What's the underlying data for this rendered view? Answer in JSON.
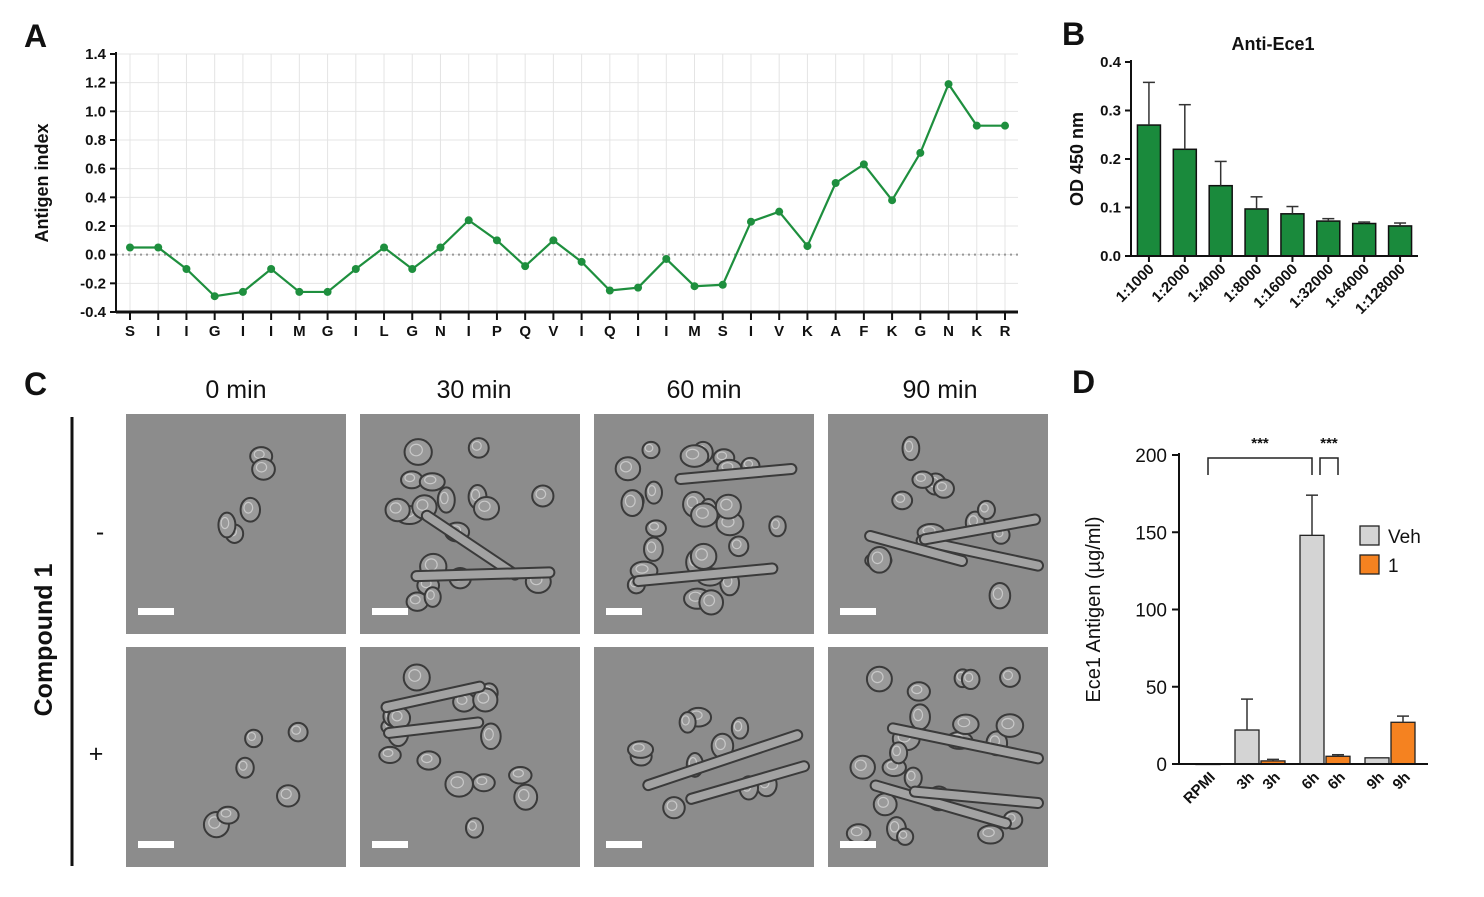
{
  "panels": {
    "A": {
      "label": "A"
    },
    "B": {
      "label": "B"
    },
    "C": {
      "label": "C"
    },
    "D": {
      "label": "D"
    }
  },
  "micro": {
    "times": [
      "0 min",
      "30 min",
      "60 min",
      "90 min"
    ],
    "rows": [
      "-",
      "+"
    ],
    "row_title": "Compound 1"
  },
  "colors": {
    "green": "#1a8a3c",
    "green_line": "#1e8f3e",
    "gray_bar": "#d4d4d4",
    "orange_bar": "#f58220",
    "micro_bg": "#8c8c8c"
  },
  "chart_data": [
    {
      "id": "A",
      "type": "line",
      "title": "",
      "xlabel": "",
      "ylabel": "Antigen index",
      "ylim": [
        -0.4,
        1.4
      ],
      "yticks": [
        "-0.4",
        "-0.2",
        "0.0",
        "0.2",
        "0.4",
        "0.6",
        "0.8",
        "1.0",
        "1.2",
        "1.4"
      ],
      "grid": true,
      "categories": [
        "S",
        "I",
        "I",
        "G",
        "I",
        "I",
        "M",
        "G",
        "I",
        "L",
        "G",
        "N",
        "I",
        "P",
        "Q",
        "V",
        "I",
        "Q",
        "I",
        "I",
        "M",
        "S",
        "I",
        "V",
        "K",
        "A",
        "F",
        "K",
        "G",
        "N",
        "K",
        "R"
      ],
      "values": [
        0.05,
        0.05,
        -0.1,
        -0.29,
        -0.26,
        -0.1,
        -0.26,
        -0.26,
        -0.1,
        0.05,
        -0.1,
        0.05,
        0.24,
        0.1,
        -0.08,
        0.1,
        -0.05,
        -0.25,
        -0.23,
        -0.03,
        -0.22,
        -0.21,
        0.23,
        0.3,
        0.06,
        0.5,
        0.63,
        0.38,
        0.71,
        1.19,
        0.9,
        0.9
      ]
    },
    {
      "id": "B",
      "type": "bar",
      "title": "Anti-Ece1",
      "xlabel": "",
      "ylabel": "OD 450 nm",
      "ylim": [
        0,
        0.4
      ],
      "yticks": [
        "0.0",
        "0.1",
        "0.2",
        "0.3",
        "0.4"
      ],
      "categories": [
        "1:1000",
        "1:2000",
        "1:4000",
        "1:8000",
        "1:16000",
        "1:32000",
        "1:64000",
        "1:128000"
      ],
      "values": [
        0.27,
        0.22,
        0.145,
        0.097,
        0.087,
        0.072,
        0.067,
        0.062
      ],
      "errors": [
        0.088,
        0.092,
        0.05,
        0.025,
        0.015,
        0.005,
        0.003,
        0.006
      ]
    },
    {
      "id": "D",
      "type": "bar",
      "title": "",
      "xlabel": "",
      "ylabel": "Ece1 Antigen (µg/ml)",
      "ylim": [
        0,
        200
      ],
      "yticks": [
        "0",
        "50",
        "100",
        "150",
        "200"
      ],
      "legend_position": "right",
      "categories": [
        "RPMI",
        "3h",
        "3h",
        "6h",
        "6h",
        "9h",
        "9h"
      ],
      "series": [
        {
          "name": "Veh",
          "values": [
            0,
            22,
            null,
            148,
            null,
            4,
            null
          ],
          "errors": [
            0,
            20,
            null,
            26,
            null,
            0,
            null
          ]
        },
        {
          "name": "1",
          "values": [
            null,
            null,
            2,
            null,
            5,
            null,
            27
          ],
          "errors": [
            null,
            null,
            1,
            null,
            1,
            null,
            4
          ]
        }
      ],
      "significance": [
        {
          "label": "***",
          "from": "RPMI",
          "to": "6h"
        },
        {
          "label": "***",
          "from": "6h",
          "to": "6h"
        }
      ]
    }
  ]
}
